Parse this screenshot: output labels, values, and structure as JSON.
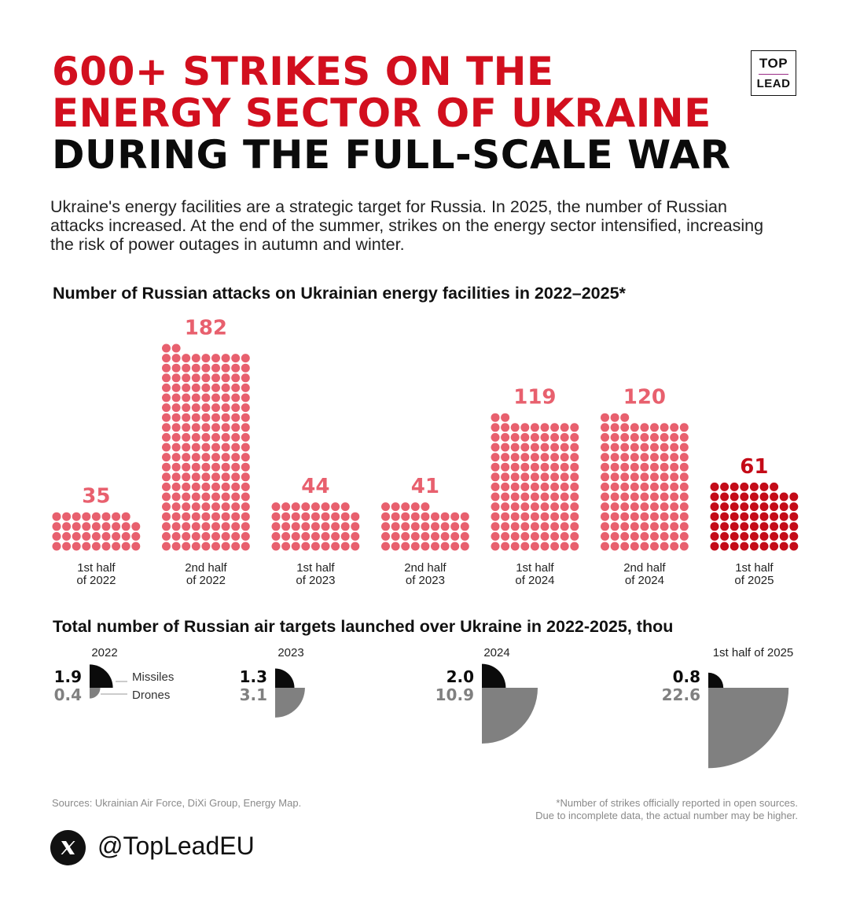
{
  "title": {
    "line1": "600+ STRIKES ON THE",
    "line2": "ENERGY SECTOR OF UKRAINE",
    "line3": "DURING THE FULL-SCALE WAR"
  },
  "logo": {
    "top": "TOP",
    "bottom": "LEAD"
  },
  "intro": "Ukraine's energy facilities are a strategic target for Russia. In 2025, the number of Russian attacks increased. At the end of the summer, strikes on the energy sector intensified, increasing the risk of power outages in autumn and winter.",
  "sources": "Sources: Ukrainian Air Force, DiXi Group, Energy Map.",
  "footnote": {
    "line1": "*Number of strikes officially reported in open sources.",
    "line2": "Due to incomplete data, the actual number may be higher."
  },
  "social": {
    "icon": "x-logo-icon",
    "handle": "@TopLeadEU"
  },
  "colors": {
    "accent": "#d20f1e",
    "dot_light": "#e8606e",
    "dot_dark": "#c40b18",
    "missiles": "#0b0b0b",
    "drones": "#808080"
  },
  "chart_data": [
    {
      "type": "bar",
      "title": "Number of Russian attacks on Ukrainian energy facilities in 2022–2025*",
      "categories": [
        [
          "1st half",
          "of 2022"
        ],
        [
          "2nd half",
          "of 2022"
        ],
        [
          "1st half",
          "of 2023"
        ],
        [
          "2nd half",
          "of 2023"
        ],
        [
          "1st half",
          "of 2024"
        ],
        [
          "2nd half",
          "of 2024"
        ],
        [
          "1st half",
          "of 2025"
        ]
      ],
      "values": [
        35,
        182,
        44,
        41,
        119,
        120,
        61
      ],
      "highlight_index": 6,
      "xlabel": "",
      "ylabel": ""
    },
    {
      "type": "pie",
      "title": "Total number of Russian air targets launched over Ukraine in 2022-2025, thou",
      "categories": [
        "2022",
        "2023",
        "2024",
        "1st half of 2025"
      ],
      "series": [
        {
          "name": "Missiles",
          "values": [
            1.9,
            1.3,
            2.0,
            0.8
          ]
        },
        {
          "name": "Drones",
          "values": [
            0.4,
            3.1,
            10.9,
            22.6
          ]
        }
      ]
    }
  ]
}
